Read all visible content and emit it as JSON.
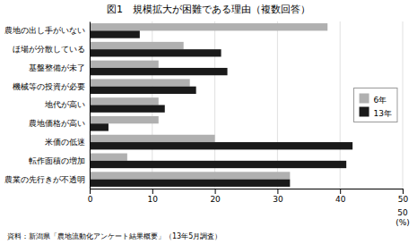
{
  "chart_data": {
    "type": "bar",
    "orientation": "horizontal",
    "title": "図1　規模拡大が困難である理由（複数回答）",
    "categories": [
      "農地の出し手がいない",
      "ほ場が分散している",
      "基盤整備が未了",
      "機械等の投資が必要",
      "地代が高い",
      "農地価格が高い",
      "米価の低迷",
      "転作面積の増加",
      "農業の先行きが不透明"
    ],
    "series": [
      {
        "name": "6年",
        "color": "#b0b0b0",
        "values": [
          38,
          15,
          11,
          16,
          11,
          11,
          20,
          6,
          32
        ]
      },
      {
        "name": "13年",
        "color": "#1a1a1a",
        "values": [
          8,
          21,
          22,
          17,
          12,
          3,
          42,
          41,
          32
        ]
      }
    ],
    "xlim": [
      0,
      50
    ],
    "xticks": [
      0,
      10,
      20,
      30,
      40,
      50
    ],
    "grid": true,
    "legend": "right",
    "annotations": [
      "50",
      "(%)"
    ],
    "footnote": "資料：新潟県「農地流動化アンケート結果概要」（13年5月調査）"
  }
}
